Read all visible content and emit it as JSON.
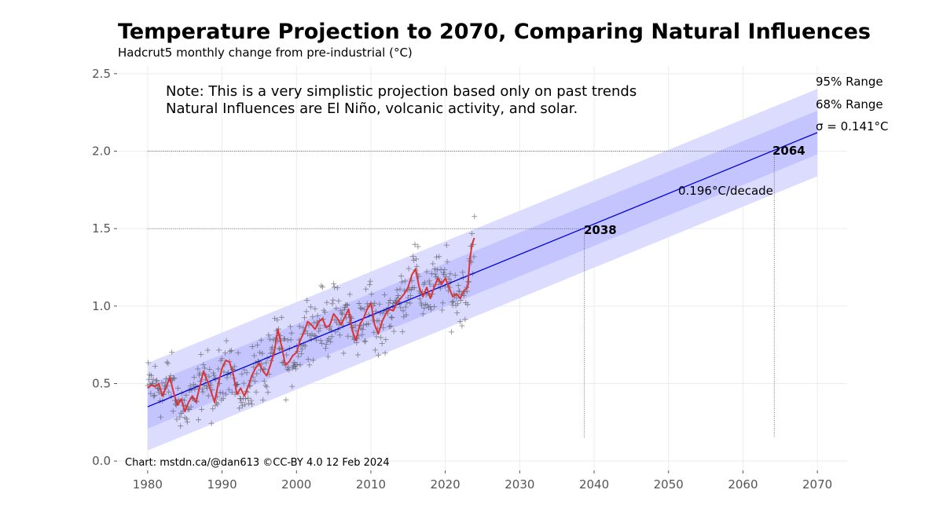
{
  "chart_data": {
    "type": "line",
    "title": "Temperature Projection to 2070, Comparing Natural Influences",
    "subtitle": "Hadcrut5 monthly change from pre-industrial (°C)",
    "xlim": [
      1976,
      2074
    ],
    "ylim": [
      -0.05,
      2.55
    ],
    "x_ticks": [
      1980,
      1990,
      2000,
      2010,
      2020,
      2030,
      2040,
      2050,
      2060,
      2070
    ],
    "y_ticks": [
      0.0,
      0.5,
      1.0,
      1.5,
      2.0,
      2.5
    ],
    "y_tick_labels": [
      "0.0",
      "0.5",
      "1.0",
      "1.5",
      "2.0",
      "2.5"
    ],
    "grid": true,
    "notes": [
      "Note: This is a very simplistic projection based only on past trends",
      "Natural Influences are El Niño, volcanic activity, and solar."
    ],
    "trend": {
      "rate_label": "0.196°C/decade",
      "x": [
        1980,
        2070
      ],
      "y": [
        0.35,
        2.12
      ],
      "color": "#0000dd"
    },
    "sigma_label": "σ = 0.141°C",
    "bands": [
      {
        "name": "95% Range",
        "halfwidth": 0.282,
        "color": "#dcdcff"
      },
      {
        "name": "68% Range",
        "halfwidth": 0.141,
        "color": "#c4c4ff"
      }
    ],
    "thresholds": [
      {
        "y": 1.5,
        "year": 2038.7,
        "label": "2038"
      },
      {
        "y": 2.0,
        "year": 2064.2,
        "label": "2064"
      }
    ],
    "smoothed": {
      "color": "#dd3333",
      "x": [
        1980.0,
        1980.5,
        1981.0,
        1981.5,
        1982.0,
        1982.5,
        1983.0,
        1983.5,
        1984.0,
        1984.5,
        1985.0,
        1985.5,
        1986.0,
        1986.5,
        1987.0,
        1987.5,
        1988.0,
        1988.5,
        1989.0,
        1989.5,
        1990.0,
        1990.5,
        1991.0,
        1991.5,
        1992.0,
        1992.5,
        1993.0,
        1993.5,
        1994.0,
        1994.5,
        1995.0,
        1995.5,
        1996.0,
        1996.5,
        1997.0,
        1997.5,
        1998.0,
        1998.5,
        1999.0,
        1999.5,
        2000.0,
        2000.5,
        2001.0,
        2001.5,
        2002.0,
        2002.5,
        2003.0,
        2003.5,
        2004.0,
        2004.5,
        2005.0,
        2005.5,
        2006.0,
        2006.5,
        2007.0,
        2007.5,
        2008.0,
        2008.5,
        2009.0,
        2009.5,
        2010.0,
        2010.5,
        2011.0,
        2011.5,
        2012.0,
        2012.5,
        2013.0,
        2013.5,
        2014.0,
        2014.5,
        2015.0,
        2015.5,
        2016.0,
        2016.5,
        2017.0,
        2017.5,
        2018.0,
        2018.5,
        2019.0,
        2019.5,
        2020.0,
        2020.5,
        2021.0,
        2021.5,
        2022.0,
        2022.5,
        2023.0,
        2023.3,
        2023.6,
        2023.9
      ],
      "y": [
        0.47,
        0.49,
        0.48,
        0.5,
        0.42,
        0.48,
        0.54,
        0.44,
        0.36,
        0.4,
        0.32,
        0.38,
        0.42,
        0.38,
        0.48,
        0.58,
        0.52,
        0.45,
        0.38,
        0.5,
        0.6,
        0.65,
        0.64,
        0.56,
        0.43,
        0.47,
        0.42,
        0.48,
        0.55,
        0.6,
        0.63,
        0.58,
        0.55,
        0.62,
        0.7,
        0.85,
        0.74,
        0.62,
        0.64,
        0.68,
        0.7,
        0.78,
        0.83,
        0.9,
        0.88,
        0.85,
        0.9,
        0.92,
        0.86,
        0.88,
        0.95,
        0.92,
        0.88,
        0.93,
        0.98,
        0.84,
        0.78,
        0.88,
        0.92,
        0.98,
        1.02,
        0.88,
        0.82,
        0.9,
        0.95,
        0.98,
        0.97,
        1.02,
        1.05,
        1.08,
        1.12,
        1.2,
        1.24,
        1.12,
        1.06,
        1.12,
        1.05,
        1.12,
        1.18,
        1.14,
        1.18,
        1.12,
        1.06,
        1.08,
        1.05,
        1.1,
        1.12,
        1.3,
        1.4,
        1.44
      ]
    },
    "scatter_color": "#555555",
    "credit": "Chart: mstdn.ca/@dan613 ©CC-BY 4.0  12 Feb 2024"
  }
}
